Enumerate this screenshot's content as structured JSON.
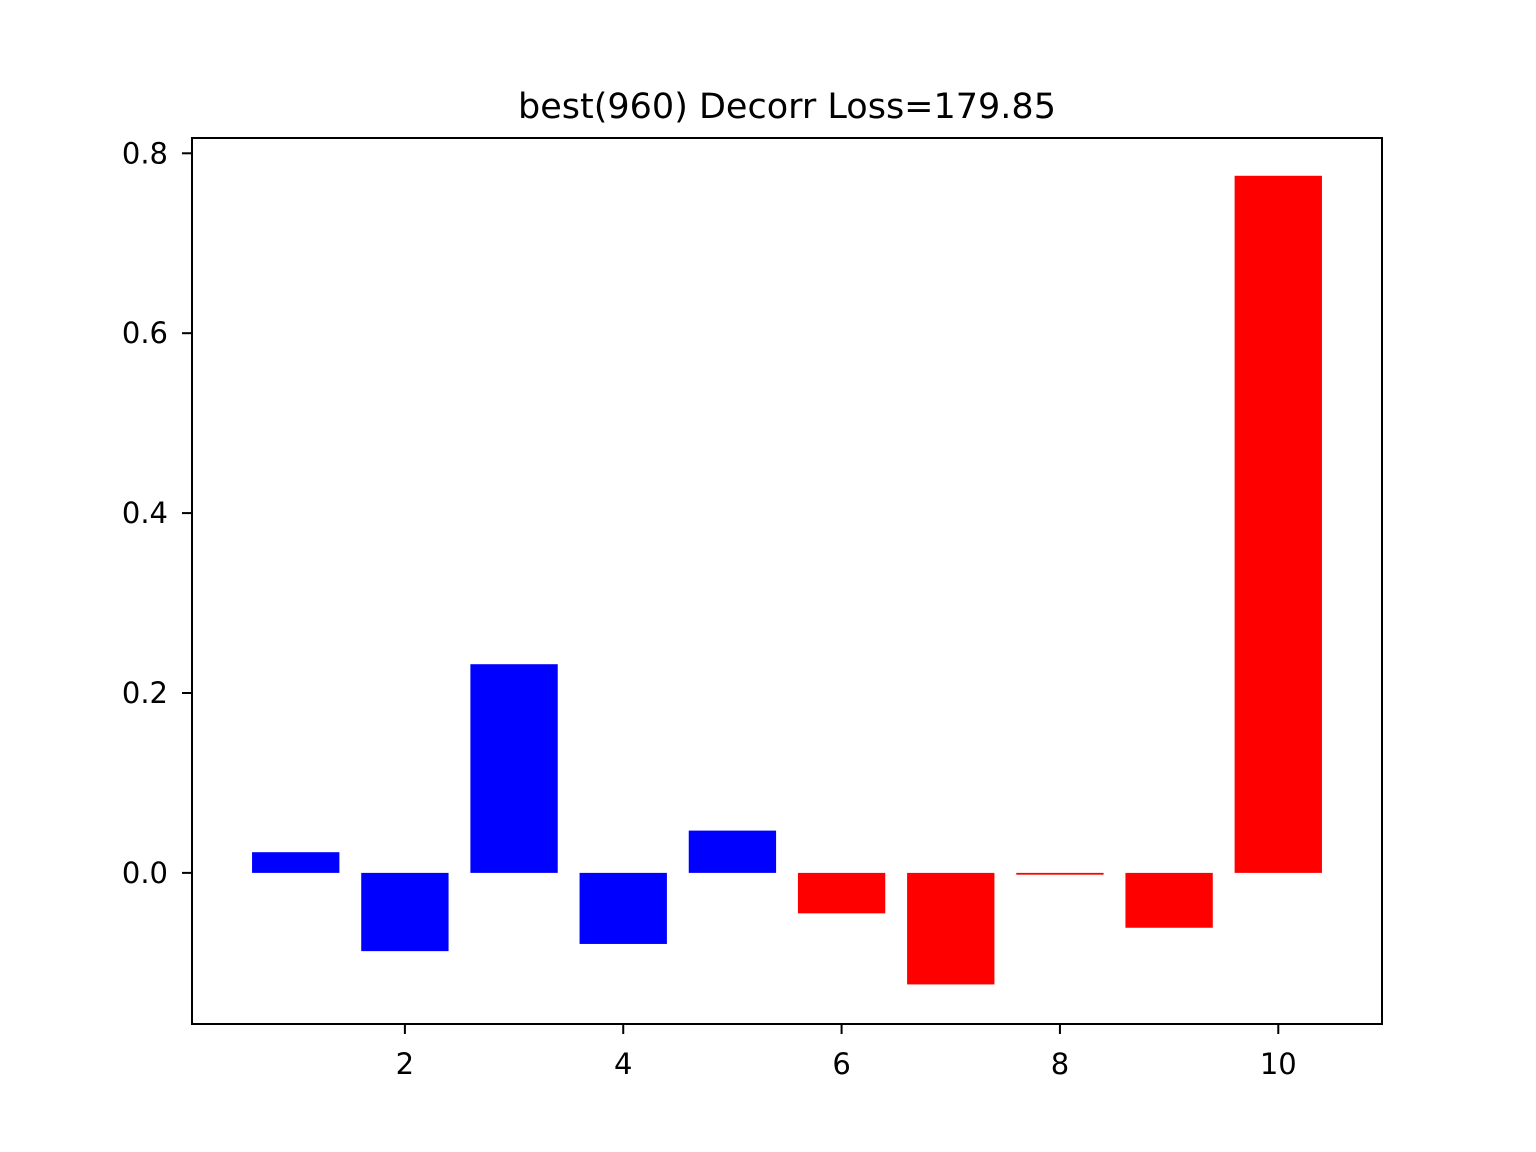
{
  "chart_data": {
    "type": "bar",
    "title": "best(960) Decorr Loss=179.85",
    "xlabel": "",
    "ylabel": "",
    "x": [
      1,
      2,
      3,
      4,
      5,
      6,
      7,
      8,
      9,
      10
    ],
    "values": [
      0.023,
      -0.087,
      0.232,
      -0.079,
      0.047,
      -0.045,
      -0.124,
      -0.002,
      -0.061,
      0.775
    ],
    "bar_colors": [
      "#0000ff",
      "#0000ff",
      "#0000ff",
      "#0000ff",
      "#0000ff",
      "#ff0000",
      "#ff0000",
      "#ff0000",
      "#ff0000",
      "#ff0000"
    ],
    "xlim": [
      0.05,
      10.95
    ],
    "ylim": [
      -0.168,
      0.817
    ],
    "x_ticks": [
      2,
      4,
      6,
      8,
      10
    ],
    "x_tick_labels": [
      "2",
      "4",
      "6",
      "8",
      "10"
    ],
    "y_ticks": [
      0.0,
      0.2,
      0.4,
      0.6,
      0.8
    ],
    "y_tick_labels": [
      "0.0",
      "0.2",
      "0.4",
      "0.6",
      "0.8"
    ],
    "grid": false,
    "legend": "none"
  }
}
